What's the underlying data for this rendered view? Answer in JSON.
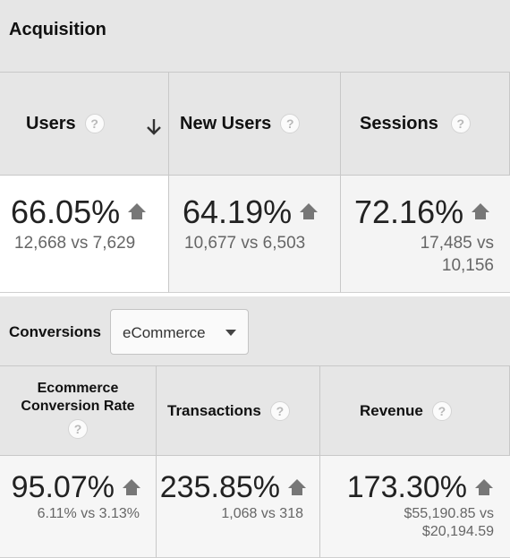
{
  "section_title": "Acquisition",
  "acquisition": {
    "sort_icon": "arrow-down-icon",
    "columns": [
      {
        "label": "Users",
        "value": "66.05%",
        "compare": "12,668 vs 7,629",
        "trend": "up"
      },
      {
        "label": "New Users",
        "value": "64.19%",
        "compare": "10,677 vs 6,503",
        "trend": "up"
      },
      {
        "label": "Sessions",
        "value": "72.16%",
        "compare_line1": "17,485 vs",
        "compare_line2": "10,156",
        "trend": "up"
      }
    ]
  },
  "conversions": {
    "label": "Conversions",
    "dropdown_value": "eCommerce",
    "columns": [
      {
        "label_line1": "Ecommerce",
        "label_line2": "Conversion Rate",
        "value": "95.07%",
        "compare": "6.11% vs 3.13%",
        "trend": "up"
      },
      {
        "label": "Transactions",
        "value": "235.85%",
        "compare": "1,068 vs 318",
        "trend": "up"
      },
      {
        "label": "Revenue",
        "value": "173.30%",
        "compare_line1": "$55,190.85 vs",
        "compare_line2": "$20,194.59",
        "trend": "up"
      }
    ]
  },
  "help_glyph": "?",
  "colors": {
    "header_bg": "#e6e6e6",
    "trend_icon": "#777777",
    "muted_text": "#666666"
  }
}
